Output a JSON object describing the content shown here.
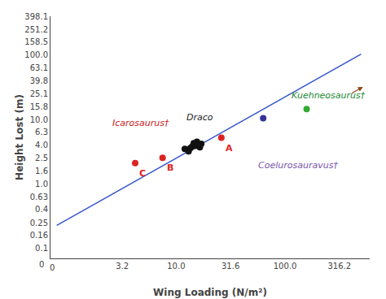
{
  "chart_data": {
    "type": "scatter",
    "xlabel": "Wing Loading (N/m²)",
    "ylabel": "Height Lost (m)",
    "log": true,
    "grid": false,
    "xlim": [
      0.7,
      600
    ],
    "ylim": [
      0.07,
      400
    ],
    "xticks": [
      3.2,
      {
        "value": 10.0,
        "label": "10.0"
      },
      31.6,
      {
        "value": 100.0,
        "label": "100.0"
      },
      316.2
    ],
    "yticks": [
      0.1,
      0.16,
      0.25,
      {
        "value": 0.4,
        "label": "0.4"
      },
      0.63,
      {
        "value": 1.0,
        "label": "1.0"
      },
      1.6,
      2.5,
      {
        "value": 4.0,
        "label": "4.0"
      },
      6.3,
      {
        "value": 10.0,
        "label": "10.0"
      },
      15.8,
      25.1,
      39.8,
      63.1,
      {
        "value": 100.0,
        "label": "100.0"
      },
      158.5,
      251.2,
      398.1
    ],
    "series": [
      {
        "type": "line",
        "color": "#3355cc",
        "line_style": "solid",
        "x": [
          0.8,
          500
        ],
        "values": [
          0.228,
          103.28
        ]
      },
      {
        "type": "scatter",
        "color": "#111111",
        "marker": "circle",
        "x": [
          12.0,
          13.5,
          14.0,
          15.0,
          15.5,
          16.0,
          14.5,
          15.5,
          13.0,
          16.5,
          17.0
        ],
        "values": [
          3.5,
          3.6,
          3.8,
          3.9,
          4.0,
          4.1,
          4.3,
          4.5,
          3.2,
          3.7,
          4.2
        ]
      },
      {
        "type": "scatter",
        "color": "#dd2222",
        "marker": "circle",
        "x": [
          4.2,
          7.5,
          26.0
        ],
        "values": [
          2.1,
          2.55,
          5.2
        ],
        "labels": [
          "C",
          "B",
          "A"
        ]
      },
      {
        "type": "scatter",
        "color": "#333399",
        "marker": "circle",
        "x": [
          63.0
        ],
        "values": [
          10.5
        ]
      },
      {
        "type": "scatter",
        "color": "#33aa33",
        "marker": "circle",
        "x": [
          158.0
        ],
        "values": [
          14.5
        ]
      }
    ],
    "annotations": [
      {
        "text": "Icarosaurus†",
        "x": 2.5,
        "y": 6.8,
        "color": "#cc2222"
      },
      {
        "text": "Draco",
        "x": 12.0,
        "y": 8.5,
        "color": "#222222"
      },
      {
        "text": "Kuehneosaurus†",
        "x": 110.0,
        "y": 18.5,
        "color": "#228833"
      },
      {
        "text": "Coelurosauravus†",
        "x": 55.0,
        "y": 1.5,
        "color": "#7755aa"
      },
      {
        "text": "0"
      },
      {
        "text": "0"
      }
    ],
    "arrows": [
      {
        "x": [
          400,
          520
        ],
        "y": [
          25,
          32
        ],
        "color": "#8B4513"
      }
    ]
  }
}
